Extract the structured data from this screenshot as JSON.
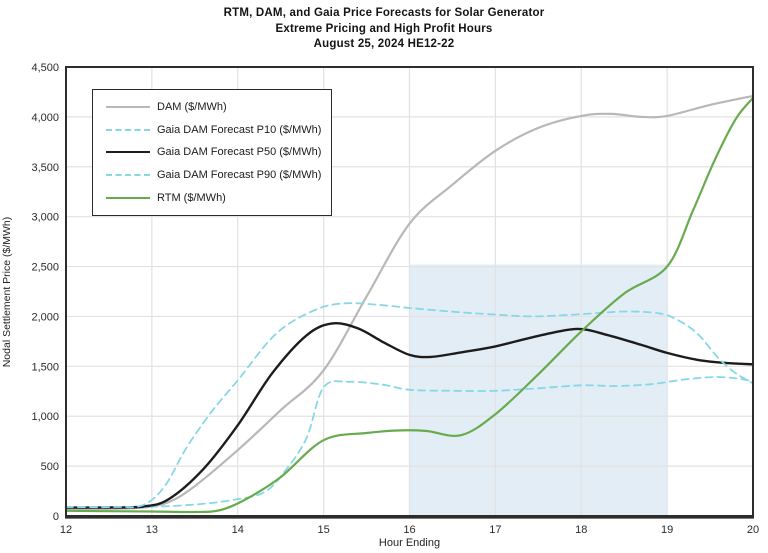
{
  "title": {
    "line1": "RTM, DAM, and Gaia Price Forecasts for Solar Generator",
    "line2": "Extreme Pricing and High Profit Hours",
    "line3": "August 25, 2024 HE12-22"
  },
  "axes": {
    "x_title": "Hour Ending",
    "y_title": "Nodal Settlement Price ($/MWh)",
    "x_ticks": [
      {
        "v": 12,
        "label": "12"
      },
      {
        "v": 13,
        "label": "13"
      },
      {
        "v": 14,
        "label": "14"
      },
      {
        "v": 15,
        "label": "15"
      },
      {
        "v": 16,
        "label": "16"
      },
      {
        "v": 17,
        "label": "17"
      },
      {
        "v": 18,
        "label": "18"
      },
      {
        "v": 19,
        "label": "19"
      },
      {
        "v": 20,
        "label": "20"
      }
    ],
    "y_ticks": [
      {
        "v": 0,
        "label": "0"
      },
      {
        "v": 500,
        "label": "500"
      },
      {
        "v": 1000,
        "label": "1,000"
      },
      {
        "v": 1500,
        "label": "1,500"
      },
      {
        "v": 2000,
        "label": "2,000"
      },
      {
        "v": 2500,
        "label": "2,500"
      },
      {
        "v": 3000,
        "label": "3,000"
      },
      {
        "v": 3500,
        "label": "3,500"
      },
      {
        "v": 4000,
        "label": "4,000"
      },
      {
        "v": 4500,
        "label": "4,500"
      }
    ]
  },
  "legend": {
    "items": [
      {
        "label": "DAM ($/MWh)",
        "color": "#b8b8b8",
        "style": "solid"
      },
      {
        "label": "Gaia DAM Forecast P10 ($/MWh)",
        "color": "#87d7e6",
        "style": "dashed"
      },
      {
        "label": "Gaia DAM Forecast P50 ($/MWh)",
        "color": "#1c1c1c",
        "style": "solid"
      },
      {
        "label": "Gaia DAM Forecast P90 ($/MWh)",
        "color": "#87d7e6",
        "style": "dashed"
      },
      {
        "label": "RTM ($/MWh)",
        "color": "#68ab4e",
        "style": "solid"
      }
    ]
  },
  "colors": {
    "grid": "#e2e2e2",
    "frame": "#2d2d2d",
    "highlight_band": "#e3edf6",
    "tick_text": "#2b2b2b"
  },
  "chart_data": {
    "type": "line",
    "title": "RTM, DAM, and Gaia Price Forecasts for Solar Generator | Extreme Pricing and High Profit Hours | August 25, 2024 HE12-22",
    "xlabel": "Hour Ending",
    "ylabel": "Nodal Settlement Price ($/MWh)",
    "xlim": [
      12,
      20
    ],
    "ylim": [
      0,
      4500
    ],
    "grid": true,
    "legend_position": "upper-left",
    "highlight_band": {
      "x_start": 16,
      "x_end": 19,
      "y_start": 0,
      "y_end": 2520,
      "color": "#e3edf6"
    },
    "series": [
      {
        "name": "DAM ($/MWh)",
        "color": "#b8b8b8",
        "style": "solid",
        "width": 2.2,
        "points": [
          [
            12,
            70
          ],
          [
            12.5,
            72
          ],
          [
            12.9,
            85
          ],
          [
            13.2,
            140
          ],
          [
            13.5,
            300
          ],
          [
            14,
            660
          ],
          [
            14.5,
            1060
          ],
          [
            15,
            1460
          ],
          [
            15.5,
            2200
          ],
          [
            16,
            2930
          ],
          [
            16.5,
            3320
          ],
          [
            17,
            3660
          ],
          [
            17.5,
            3890
          ],
          [
            18,
            4010
          ],
          [
            18.35,
            4030
          ],
          [
            18.7,
            4000
          ],
          [
            19,
            4010
          ],
          [
            19.5,
            4120
          ],
          [
            20,
            4210
          ]
        ]
      },
      {
        "name": "Gaia DAM Forecast P10 ($/MWh)",
        "color": "#87d7e6",
        "style": "dashed",
        "width": 1.8,
        "points": [
          [
            12,
            85
          ],
          [
            12.5,
            85
          ],
          [
            13,
            92
          ],
          [
            13.5,
            115
          ],
          [
            13.9,
            155
          ],
          [
            14.3,
            235
          ],
          [
            14.55,
            450
          ],
          [
            14.8,
            780
          ],
          [
            15,
            1290
          ],
          [
            15.3,
            1345
          ],
          [
            15.7,
            1315
          ],
          [
            16,
            1265
          ],
          [
            16.5,
            1255
          ],
          [
            17,
            1255
          ],
          [
            17.5,
            1280
          ],
          [
            18,
            1310
          ],
          [
            18.4,
            1303
          ],
          [
            18.8,
            1320
          ],
          [
            19.2,
            1368
          ],
          [
            19.55,
            1392
          ],
          [
            19.8,
            1380
          ],
          [
            20,
            1350
          ]
        ]
      },
      {
        "name": "Gaia DAM Forecast P50 ($/MWh)",
        "color": "#1c1c1c",
        "style": "solid",
        "width": 2.4,
        "points": [
          [
            12,
            85
          ],
          [
            12.5,
            85
          ],
          [
            12.9,
            95
          ],
          [
            13.2,
            170
          ],
          [
            13.6,
            470
          ],
          [
            14,
            910
          ],
          [
            14.4,
            1430
          ],
          [
            14.8,
            1810
          ],
          [
            15.1,
            1930
          ],
          [
            15.4,
            1880
          ],
          [
            15.7,
            1740
          ],
          [
            16,
            1615
          ],
          [
            16.25,
            1595
          ],
          [
            16.6,
            1640
          ],
          [
            17,
            1700
          ],
          [
            17.5,
            1805
          ],
          [
            17.95,
            1875
          ],
          [
            18.3,
            1815
          ],
          [
            18.7,
            1715
          ],
          [
            19,
            1635
          ],
          [
            19.35,
            1565
          ],
          [
            19.7,
            1532
          ],
          [
            20,
            1520
          ]
        ]
      },
      {
        "name": "Gaia DAM Forecast P90 ($/MWh)",
        "color": "#87d7e6",
        "style": "dashed",
        "width": 1.8,
        "points": [
          [
            12,
            90
          ],
          [
            12.55,
            90
          ],
          [
            12.9,
            110
          ],
          [
            13.15,
            300
          ],
          [
            13.4,
            680
          ],
          [
            13.7,
            1050
          ],
          [
            14,
            1360
          ],
          [
            14.45,
            1830
          ],
          [
            14.9,
            2065
          ],
          [
            15.25,
            2132
          ],
          [
            15.7,
            2112
          ],
          [
            16,
            2085
          ],
          [
            16.5,
            2048
          ],
          [
            17,
            2018
          ],
          [
            17.4,
            2000
          ],
          [
            17.8,
            2012
          ],
          [
            18.2,
            2035
          ],
          [
            18.55,
            2050
          ],
          [
            18.9,
            2032
          ],
          [
            19.1,
            1975
          ],
          [
            19.35,
            1830
          ],
          [
            19.6,
            1580
          ],
          [
            19.8,
            1430
          ],
          [
            20,
            1330
          ]
        ]
      },
      {
        "name": "RTM ($/MWh)",
        "color": "#68ab4e",
        "style": "solid",
        "width": 2.2,
        "points": [
          [
            12,
            52
          ],
          [
            12.5,
            48
          ],
          [
            13,
            45
          ],
          [
            13.5,
            40
          ],
          [
            13.8,
            60
          ],
          [
            14.1,
            170
          ],
          [
            14.5,
            390
          ],
          [
            15,
            760
          ],
          [
            15.5,
            832
          ],
          [
            15.9,
            858
          ],
          [
            16.2,
            852
          ],
          [
            16.6,
            810
          ],
          [
            17,
            1020
          ],
          [
            17.5,
            1420
          ],
          [
            18,
            1850
          ],
          [
            18.5,
            2230
          ],
          [
            19,
            2500
          ],
          [
            19.3,
            3060
          ],
          [
            19.55,
            3560
          ],
          [
            19.8,
            3980
          ],
          [
            20,
            4190
          ]
        ]
      }
    ]
  }
}
